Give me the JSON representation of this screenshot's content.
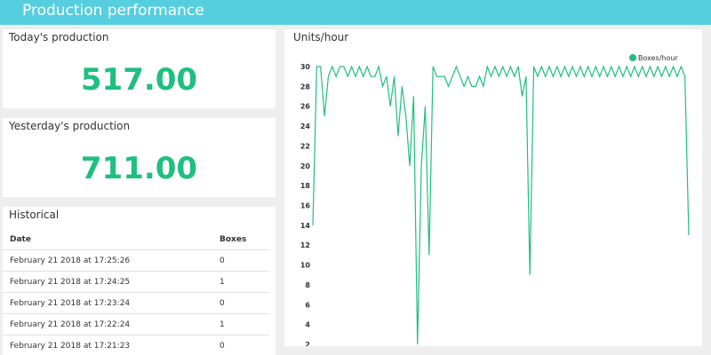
{
  "header": {
    "title": "Production performance"
  },
  "cards": [
    {
      "title": "Today's production",
      "value": "517.00"
    },
    {
      "title": "Yesterday's production",
      "value": "711.00"
    }
  ],
  "table": {
    "title": "Historical",
    "columns": [
      "Date",
      "Boxes"
    ],
    "rows": [
      [
        "February 21 2018 at 17:25:26",
        0
      ],
      [
        "February 21 2018 at 17:24:25",
        1
      ],
      [
        "February 21 2018 at 17:23:24",
        0
      ],
      [
        "February 21 2018 at 17:22:24",
        1
      ],
      [
        "February 21 2018 at 17:21:23",
        0
      ]
    ]
  },
  "chart_data": {
    "type": "line",
    "title": "Units/hour",
    "series": [
      {
        "name": "Boxes/hour",
        "color": "#1fbf7f",
        "values": [
          14,
          30,
          30,
          25,
          29,
          30,
          29,
          30,
          30,
          29,
          30,
          29,
          30,
          29,
          30,
          29,
          29,
          30,
          28,
          29,
          26,
          29,
          23,
          28,
          25,
          20,
          27,
          2,
          20,
          26,
          11,
          30,
          29,
          29,
          29,
          28,
          29,
          30,
          29,
          28,
          29,
          28,
          28,
          29,
          28,
          30,
          29,
          30,
          29,
          30,
          29,
          30,
          29,
          30,
          27,
          29,
          9,
          30,
          29,
          30,
          29,
          30,
          29,
          30,
          29,
          30,
          29,
          30,
          29,
          30,
          29,
          30,
          29,
          30,
          29,
          30,
          29,
          30,
          29,
          30,
          29,
          30,
          29,
          30,
          29,
          30,
          29,
          30,
          29,
          30,
          29,
          30,
          29,
          30,
          29,
          30,
          29,
          13
        ]
      }
    ],
    "ylim": [
      2,
      30
    ],
    "yticks": [
      2,
      4,
      6,
      8,
      10,
      12,
      14,
      16,
      18,
      20,
      22,
      24,
      26,
      28,
      30
    ],
    "legend": "top-right"
  }
}
